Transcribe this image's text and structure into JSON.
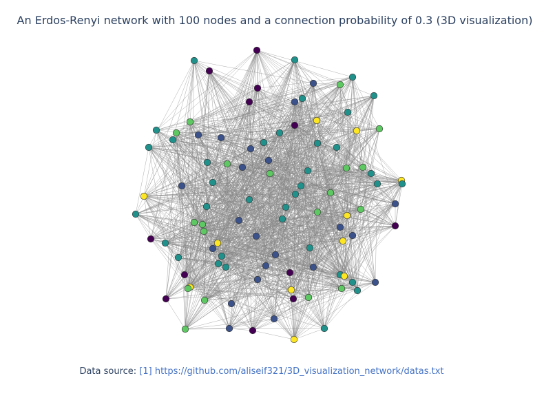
{
  "title": "An Erdos-Renyi network with 100 nodes and a connection probability of 0.3 (3D visualization)",
  "source": {
    "prefix": "Data source:",
    "ref": "[1]",
    "url": "https://github.com/aliseif321/3D_visualization_network/datas.txt"
  },
  "network": {
    "node_count": 100,
    "connection_probability": 0.3,
    "edge_color": "#888888",
    "node_outline_color": "#333333",
    "colorscale": "Viridis",
    "colorscale_stops": [
      "#440154",
      "#3b528b",
      "#21918c",
      "#5ec962",
      "#fde725"
    ]
  }
}
